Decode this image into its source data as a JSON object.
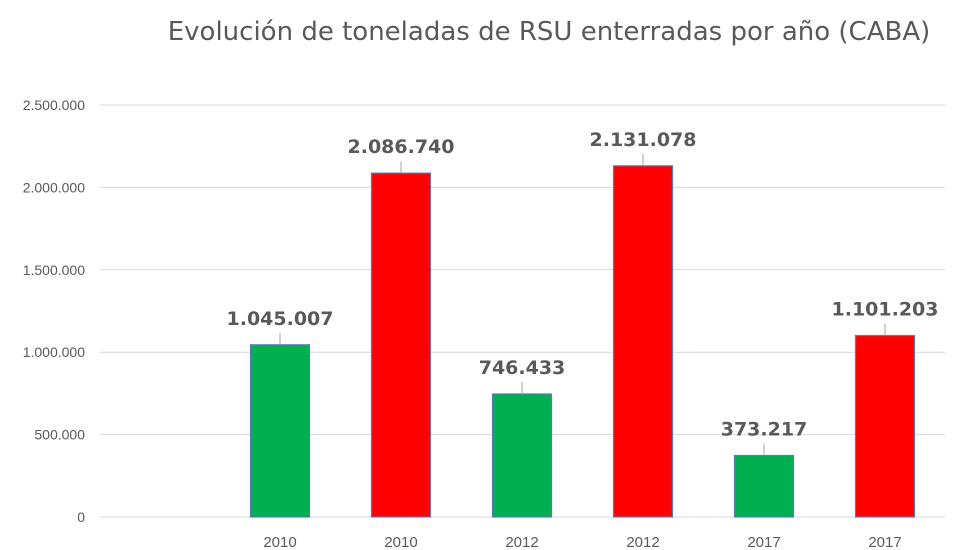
{
  "chart_data": {
    "type": "bar",
    "title": "Evolución de toneladas de RSU enterradas por año (CABA)",
    "xlabel": "",
    "ylabel": "",
    "categories": [
      "2010",
      "2010",
      "2012",
      "2012",
      "2017",
      "2017"
    ],
    "values": [
      1045007,
      2086740,
      746433,
      2131078,
      373217,
      1101203
    ],
    "value_labels": [
      "1.045.007",
      "2.086.740",
      "746.433",
      "2.131.078",
      "373.217",
      "1.101.203"
    ],
    "bar_colors": [
      "#00b050",
      "#ff0000",
      "#00b050",
      "#ff0000",
      "#00b050",
      "#ff0000"
    ],
    "ylim": [
      0,
      2500000
    ],
    "yticks": [
      0,
      500000,
      1000000,
      1500000,
      2000000,
      2500000
    ],
    "ytick_labels": [
      "0",
      "500.000",
      "1.000.000",
      "1.500.000",
      "2.000.000",
      "2.500.000"
    ],
    "grid": true,
    "legend": "none"
  }
}
